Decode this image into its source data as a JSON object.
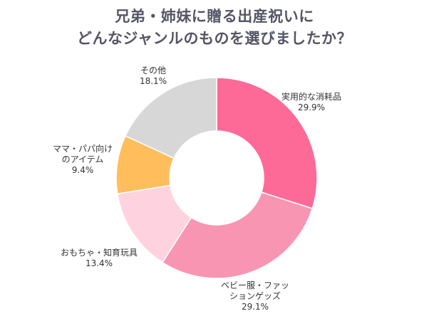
{
  "title": {
    "line1": "兄弟・姉妹に贈る出産祝いに",
    "line2": "どんなジャンルのものを選びましたか？"
  },
  "chart_data": {
    "type": "pie",
    "variant": "donut",
    "title": "兄弟・姉妹に贈る出産祝いに どんなジャンルのものを選びましたか？",
    "unit": "%",
    "slices": [
      {
        "label_lines": [
          "実用的な消耗品"
        ],
        "value": 29.9,
        "value_text": "29.9%",
        "color": "#fe6a97"
      },
      {
        "label_lines": [
          "ベビー服・ファッ",
          "ションゲッズ"
        ],
        "value": 29.1,
        "value_text": "29.1%",
        "color": "#f795b2"
      },
      {
        "label_lines": [
          "おもちゃ・知育玩具"
        ],
        "value": 13.4,
        "value_text": "13.4%",
        "color": "#fed3df"
      },
      {
        "label_lines": [
          "ママ・パパ向け",
          "のアイテム"
        ],
        "value": 9.4,
        "value_text": "9.4%",
        "color": "#ffbd5c"
      },
      {
        "label_lines": [
          "その他"
        ],
        "value": 18.1,
        "value_text": "18.1%",
        "color": "#d7d7d7"
      }
    ]
  }
}
